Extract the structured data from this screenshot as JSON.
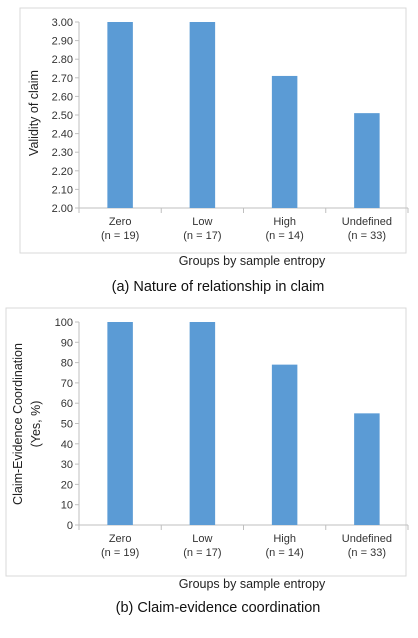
{
  "chart_data": [
    {
      "type": "bar",
      "categories": [
        "Zero",
        "Low",
        "High",
        "Undefined"
      ],
      "category_counts": [
        "(n = 19)",
        "(n = 17)",
        "(n = 14)",
        "(n = 33)"
      ],
      "values": [
        3.0,
        3.0,
        2.71,
        2.51
      ],
      "yticks": [
        "2.00",
        "2.10",
        "2.20",
        "2.30",
        "2.40",
        "2.50",
        "2.60",
        "2.70",
        "2.80",
        "2.90",
        "3.00"
      ],
      "ylim": [
        2.0,
        3.0
      ],
      "ylabel": "Validity of claim",
      "ylabel_line2": "",
      "xlabel": "Groups by sample entropy",
      "caption": "(a) Nature of relationship in claim",
      "bar_color": "#5b9bd5",
      "grid": false
    },
    {
      "type": "bar",
      "categories": [
        "Zero",
        "Low",
        "High",
        "Undefined"
      ],
      "category_counts": [
        "(n = 19)",
        "(n = 17)",
        "(n = 14)",
        "(n = 33)"
      ],
      "values": [
        100,
        100,
        79,
        55
      ],
      "yticks": [
        "0",
        "10",
        "20",
        "30",
        "40",
        "50",
        "60",
        "70",
        "80",
        "90",
        "100"
      ],
      "ylim": [
        0,
        100
      ],
      "ylabel": "Claim-Evidence Coordination",
      "ylabel_line2": "(Yes, %)",
      "xlabel": "Groups by sample entropy",
      "caption": "(b) Claim-evidence coordination",
      "bar_color": "#5b9bd5",
      "grid": false
    }
  ]
}
